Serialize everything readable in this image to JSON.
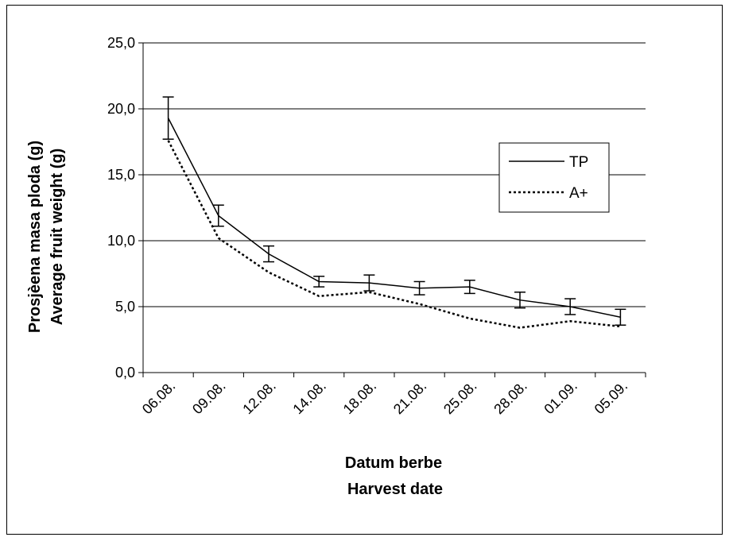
{
  "chart_data": {
    "type": "line",
    "categories": [
      "06.08.",
      "09.08.",
      "12.08.",
      "14.08.",
      "18.08.",
      "21.08.",
      "25.08.",
      "28.08.",
      "01.09.",
      "05.09."
    ],
    "y_tick_labels": [
      "0,0",
      "5,0",
      "10,0",
      "15,0",
      "20,0",
      "25,0"
    ],
    "ylim": [
      0,
      25
    ],
    "ylabel_lines": [
      "Prosjèena masa ploda (g)",
      "Average fruit weight (g)"
    ],
    "xlabel_lines": [
      "Datum berbe",
      "Harvest date"
    ],
    "grid": "horizontal",
    "legend_position": "right",
    "series": [
      {
        "name": "TP",
        "style": "solid",
        "color": "#000000",
        "values": [
          19.3,
          11.9,
          9.0,
          6.9,
          6.8,
          6.4,
          6.5,
          5.5,
          5.0,
          4.2
        ],
        "error": [
          1.6,
          0.8,
          0.6,
          0.4,
          0.6,
          0.5,
          0.5,
          0.6,
          0.6,
          0.6
        ]
      },
      {
        "name": "A+",
        "style": "dotted",
        "color": "#000000",
        "values": [
          17.6,
          10.2,
          7.6,
          5.8,
          6.1,
          5.2,
          4.1,
          3.4,
          3.9,
          3.5
        ]
      }
    ]
  }
}
